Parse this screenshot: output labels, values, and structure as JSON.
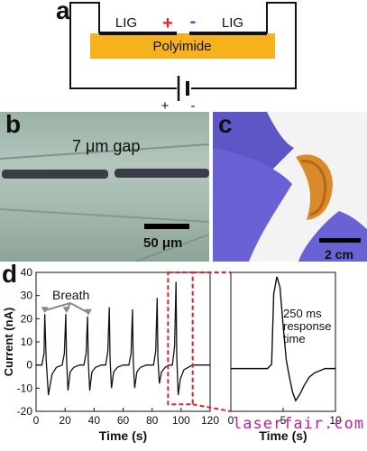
{
  "panel_a": {
    "label": "a",
    "left_electrode": "LIG",
    "right_electrode": "LIG",
    "plus": "+",
    "minus": "-",
    "substrate": "Polyimide",
    "battery_plus": "+",
    "battery_minus": "-",
    "colors": {
      "substrate": "#f5b21c",
      "plus": "#e8202a",
      "minus": "#2a5cc9"
    }
  },
  "panel_b": {
    "label": "b",
    "gap_text": "7 μm gap",
    "scale_text": "50 μm"
  },
  "panel_c": {
    "label": "c",
    "scale_text": "2 cm"
  },
  "panel_d": {
    "label": "d",
    "annotation_breath": "Breath",
    "response_text": [
      "250 ms",
      "response",
      "time"
    ],
    "watermark": "laserfair.com"
  },
  "chart_data": [
    {
      "type": "line",
      "xlabel": "Time (s)",
      "ylabel": "Current (nA)",
      "xlim": [
        0,
        120
      ],
      "ylim": [
        -20,
        40
      ],
      "xticks": [
        0,
        20,
        40,
        60,
        80,
        100,
        120
      ],
      "yticks": [
        -20,
        -10,
        0,
        10,
        20,
        30,
        40
      ],
      "series": [
        {
          "x": [
            0,
            4,
            5.5,
            6,
            7,
            8.5,
            11,
            14,
            18,
            19.5,
            20.5,
            21,
            22,
            23.5,
            26,
            30,
            33,
            34.5,
            35.5,
            36,
            37,
            38.5,
            41,
            45,
            48,
            49.5,
            50.5,
            51,
            52,
            53.5,
            56,
            60,
            64,
            65.5,
            66.5,
            67,
            68,
            69.5,
            72,
            76,
            81,
            82.5,
            83.5,
            84,
            85,
            86.5,
            89,
            92,
            94,
            95.5,
            96.5,
            97,
            98,
            99.5,
            102,
            105,
            108,
            112,
            120
          ],
          "y": [
            0,
            0,
            5,
            22,
            2,
            -13,
            -4,
            -1,
            0,
            5,
            22,
            3,
            -11,
            -3,
            -1,
            0,
            0,
            5,
            21,
            2,
            -11,
            -3,
            -1,
            0,
            0,
            6,
            25,
            3,
            -10,
            -3,
            -1,
            0,
            0,
            5,
            24,
            2,
            -10,
            -3,
            -1,
            0,
            0,
            6,
            29,
            3,
            -8,
            -3,
            -1,
            0,
            0,
            8,
            36,
            4,
            -13,
            -6,
            -2,
            -1,
            0,
            0,
            0
          ]
        }
      ],
      "highlight_box": [
        91,
        108
      ]
    },
    {
      "type": "line",
      "xlabel": "Time (s)",
      "xlim": [
        0,
        10
      ],
      "ylim": [
        -20,
        45
      ],
      "xticks": [
        0,
        5,
        10
      ],
      "series": [
        {
          "x": [
            0,
            3.5,
            3.9,
            4.1,
            4.4,
            4.7,
            5.0,
            5.3,
            5.6,
            5.9,
            6.2,
            6.6,
            7.0,
            7.5,
            8.0,
            8.5,
            9.0,
            10
          ],
          "y": [
            0,
            0,
            2,
            35,
            43,
            38,
            20,
            4,
            -4,
            -11,
            -15,
            -12,
            -8,
            -4,
            -2,
            -1,
            0,
            0
          ]
        }
      ]
    }
  ]
}
